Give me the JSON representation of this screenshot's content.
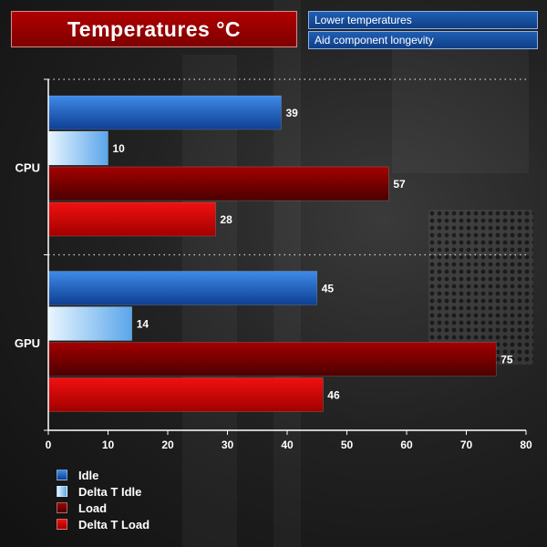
{
  "header": {
    "title": "Temperatures °C",
    "notes": [
      "Lower temperatures",
      "Aid component longevity"
    ]
  },
  "colors": {
    "idle": "#1a5fc4",
    "delta_idle": "#9fd0f5",
    "load": "#7a0000",
    "delta_load": "#d40000"
  },
  "chart_data": {
    "type": "bar",
    "orientation": "horizontal",
    "categories": [
      "CPU",
      "GPU"
    ],
    "series": [
      {
        "name": "Idle",
        "values": [
          39,
          45
        ]
      },
      {
        "name": "Delta T Idle",
        "values": [
          10,
          14
        ]
      },
      {
        "name": "Load",
        "values": [
          57,
          75
        ]
      },
      {
        "name": "Delta T Load",
        "values": [
          28,
          46
        ]
      }
    ],
    "xlim": [
      0,
      80
    ],
    "xticks": [
      "0",
      "10",
      "20",
      "30",
      "40",
      "50",
      "60",
      "70",
      "80"
    ],
    "grid": "dotted horizontal separators",
    "legend_position": "bottom-left",
    "data_labels": true
  }
}
